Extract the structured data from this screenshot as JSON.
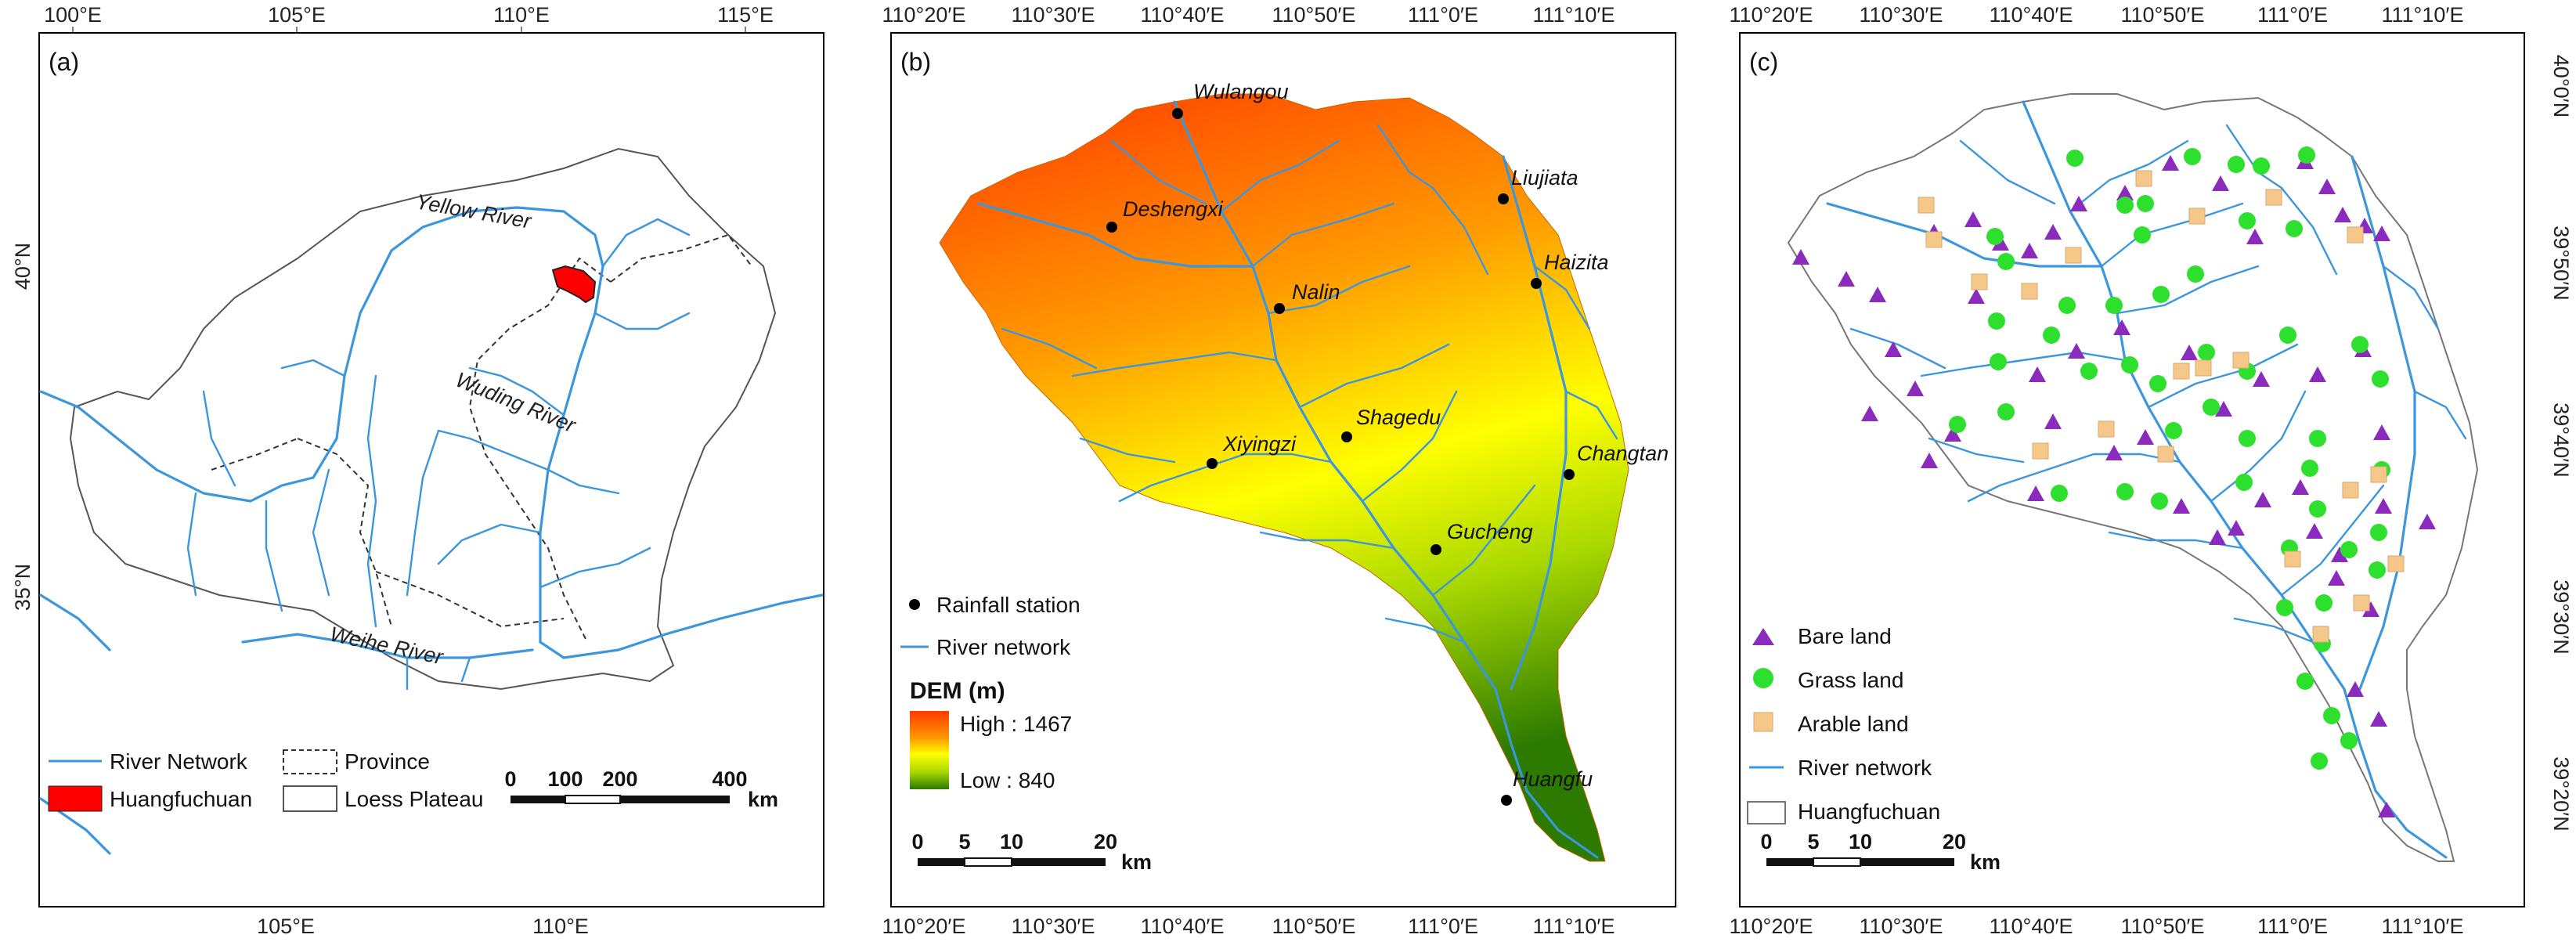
{
  "panel_a": {
    "label": "(a)",
    "top_ticks": [
      "100°E",
      "105°E",
      "110°E",
      "115°E"
    ],
    "bottom_ticks": [
      "105°E",
      "110°E"
    ],
    "left_ticks": [
      "40°N",
      "35°N"
    ],
    "river_names": [
      "Yellow River",
      "Wuding River",
      "Weihe River"
    ],
    "legend": {
      "river": "River Network",
      "province": "Province",
      "basin": "Huangfuchuan",
      "plateau": "Loess Plateau"
    },
    "scale": {
      "labels": [
        "0",
        "100",
        "200",
        "400"
      ],
      "unit": "km"
    },
    "colors": {
      "basin": "#ff0000",
      "river": "#3b96dc"
    }
  },
  "panel_b": {
    "label": "(b)",
    "top_ticks": [
      "110°20′E",
      "110°30′E",
      "110°40′E",
      "110°50′E",
      "111°0′E",
      "111°10′E"
    ],
    "bottom_ticks": [
      "110°20′E",
      "110°30′E",
      "110°40′E",
      "110°50′E",
      "111°0′E",
      "111°10′E"
    ],
    "stations": [
      {
        "name": "Wulangou"
      },
      {
        "name": "Deshengxi"
      },
      {
        "name": "Liujiata"
      },
      {
        "name": "Haizita"
      },
      {
        "name": "Nalin"
      },
      {
        "name": "Shagedu"
      },
      {
        "name": "Xiyingzi"
      },
      {
        "name": "Changtan"
      },
      {
        "name": "Gucheng"
      },
      {
        "name": "Huangfu"
      }
    ],
    "legend": {
      "station": "Rainfall station",
      "river": "River network",
      "dem_title": "DEM (m)",
      "dem_high": "High : 1467",
      "dem_low": "Low : 840"
    },
    "dem_colors": [
      "#ff3a00",
      "#ff9a00",
      "#ffff00",
      "#a8d800",
      "#2c7a00"
    ],
    "scale": {
      "labels": [
        "0",
        "5",
        "10",
        "20"
      ],
      "unit": "km"
    }
  },
  "panel_c": {
    "label": "(c)",
    "top_ticks": [
      "110°20′E",
      "110°30′E",
      "110°40′E",
      "110°50′E",
      "111°0′E",
      "111°10′E"
    ],
    "bottom_ticks": [
      "110°20′E",
      "110°30′E",
      "110°40′E",
      "110°50′E",
      "111°0′E",
      "111°10′E"
    ],
    "right_ticks": [
      "40°0′N",
      "39°50′N",
      "39°40′N",
      "39°30′N",
      "39°20′N"
    ],
    "legend": {
      "bare": "Bare land",
      "grass": "Grass land",
      "arable": "Arable land",
      "river": "River network",
      "basin": "Huangfuchuan"
    },
    "colors": {
      "bare": "#8a2bbe",
      "grass": "#2ee02e",
      "arable": "#f5c88a"
    },
    "scale": {
      "labels": [
        "0",
        "5",
        "10",
        "20"
      ],
      "unit": "km"
    }
  }
}
